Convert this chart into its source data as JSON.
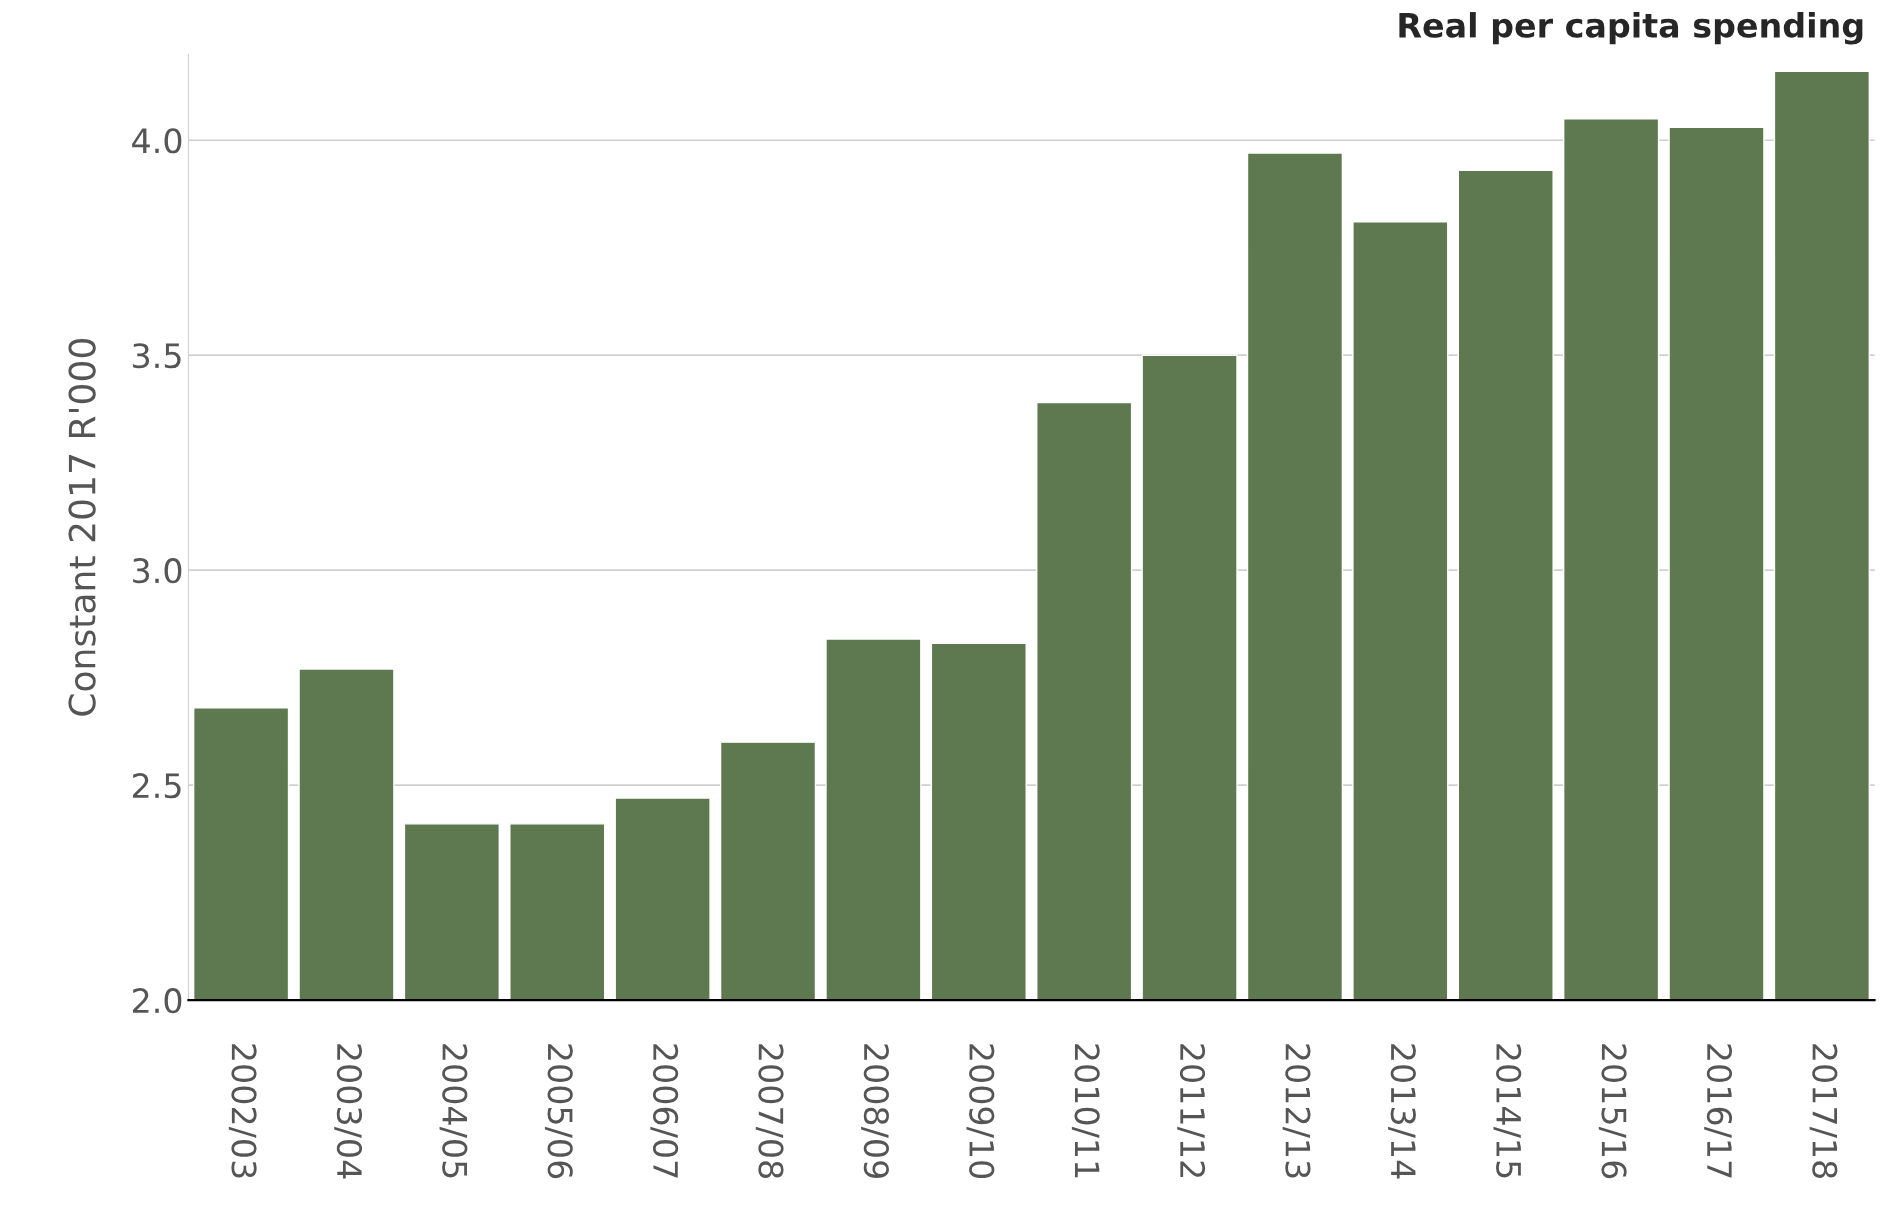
{
  "chart_data": {
    "type": "bar",
    "title": "Real per capita spending",
    "ylabel": "Constant 2017 R'000",
    "categories": [
      "2002/03",
      "2003/04",
      "2004/05",
      "2005/06",
      "2006/07",
      "2007/08",
      "2008/09",
      "2009/10",
      "2010/11",
      "2011/12",
      "2012/13",
      "2013/14",
      "2014/15",
      "2015/16",
      "2016/17",
      "2017/18"
    ],
    "values": [
      2.68,
      2.77,
      2.41,
      2.41,
      2.47,
      2.6,
      2.84,
      2.83,
      3.39,
      3.5,
      3.97,
      3.81,
      3.93,
      4.05,
      4.03,
      4.16
    ],
    "color": "#5e784f",
    "ylim": [
      2.0,
      4.2
    ],
    "yticks": [
      {
        "value": 2.0,
        "label": "2.0"
      },
      {
        "value": 2.5,
        "label": "2.5"
      },
      {
        "value": 3.0,
        "label": "3.0"
      },
      {
        "value": 3.5,
        "label": "3.5"
      },
      {
        "value": 4.0,
        "label": "4.0"
      }
    ],
    "grid": "y"
  }
}
